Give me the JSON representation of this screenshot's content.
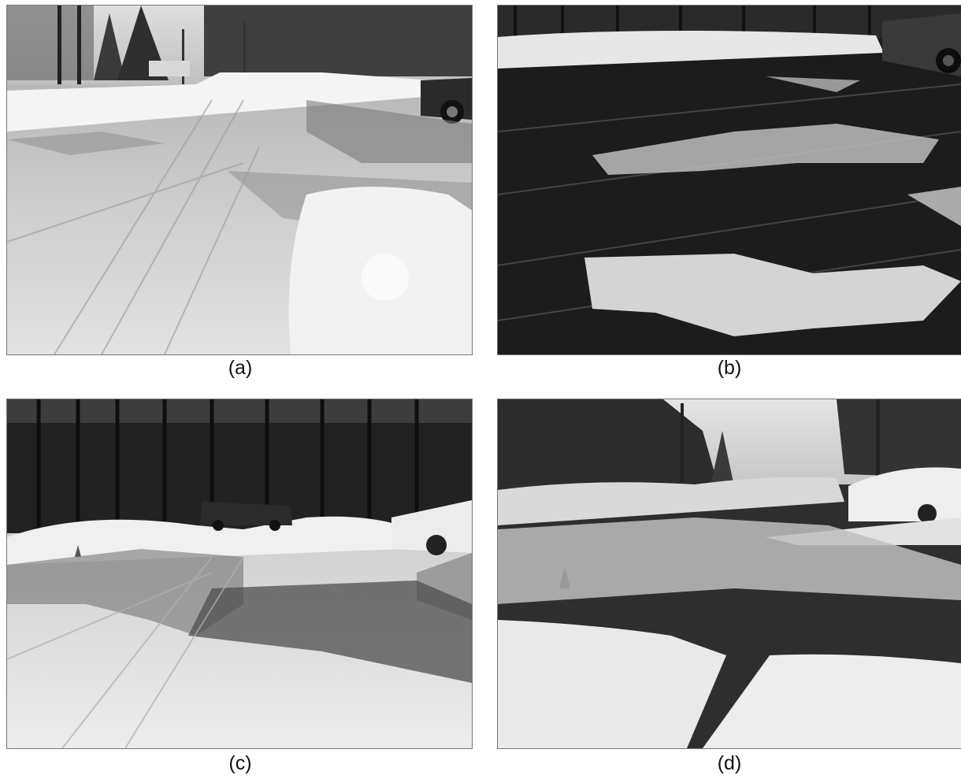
{
  "figure": {
    "panels": [
      {
        "label": "(a)"
      },
      {
        "label": "(b)"
      },
      {
        "label": "(c)"
      },
      {
        "label": "(d)"
      }
    ]
  }
}
